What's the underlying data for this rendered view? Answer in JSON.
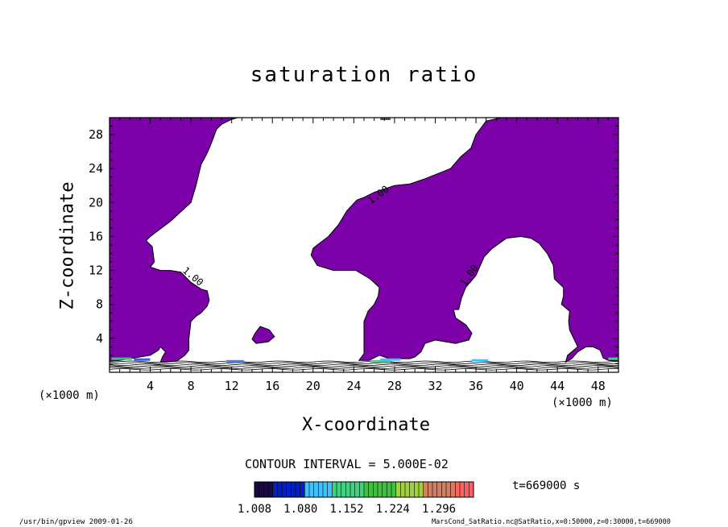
{
  "chart_data": {
    "type": "contour",
    "title": "saturation ratio",
    "xlabel": "X-coordinate",
    "ylabel": "Z-coordinate",
    "x_unit": "(×1000 m)",
    "y_unit": "(×1000 m)",
    "xlim": [
      0,
      50
    ],
    "ylim": [
      0,
      30
    ],
    "x_ticks": [
      4,
      8,
      12,
      16,
      20,
      24,
      28,
      32,
      36,
      40,
      44,
      48
    ],
    "y_ticks": [
      4,
      8,
      12,
      16,
      20,
      24,
      28
    ],
    "contour_interval_label": "CONTOUR INTERVAL = 5.000E-02",
    "contour_labels": [
      "1.00",
      "1.00",
      "1.00"
    ],
    "time_label": "t=669000 s",
    "colorbar": {
      "min": 1.008,
      "max": 1.35,
      "tick_values": [
        "1.008",
        "1.080",
        "1.152",
        "1.224",
        "1.296"
      ],
      "colors": [
        "#1a0840",
        "#0020c0",
        "#40c0ff",
        "#40d080",
        "#40c040",
        "#a0d040",
        "#d08060",
        "#ff6060"
      ]
    },
    "fill_color": "#7b00a8",
    "footer_left": "/usr/bin/gpview  2009-01-26",
    "footer_right": "MarsCond_SatRatio.nc@SatRatio,x=0:50000,z=0:30000,t=669000"
  }
}
